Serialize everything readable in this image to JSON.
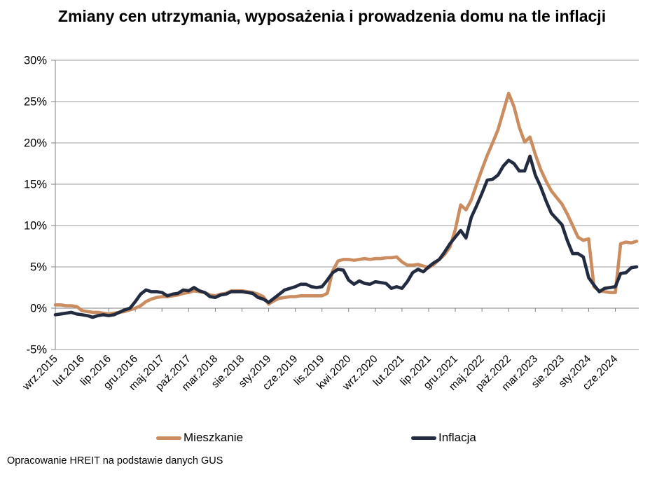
{
  "page": {
    "title": "Zmiany cen utrzymania, wyposażenia i prowadzenia domu na tle inflacji"
  },
  "footer": {
    "text": "Opracowanie HREIT na podstawie danych GUS"
  },
  "chart_data": {
    "type": "line",
    "title": "Zmiany cen utrzymania, wyposażenia i prowadzenia domu na tle inflacji",
    "frequency": "monthly",
    "x_start": "wrz.2015",
    "x_end": "paź.2024",
    "x_tick_labels": [
      "wrz.2015",
      "lut.2016",
      "lip.2016",
      "gru.2016",
      "maj.2017",
      "paź.2017",
      "mar.2018",
      "sie.2018",
      "sty.2019",
      "cze.2019",
      "lis.2019",
      "kwi.2020",
      "wrz.2020",
      "lut.2021",
      "lip.2021",
      "gru.2021",
      "maj.2022",
      "paź.2022",
      "mar.2023",
      "sie.2023",
      "sty.2024",
      "cze.2024"
    ],
    "x_tick_every_n_months": 5,
    "ytick_labels": [
      "30%",
      "25%",
      "20%",
      "15%",
      "10%",
      "5%",
      "0%",
      "-5%"
    ],
    "ylim": [
      -5,
      30
    ],
    "ytick_step": 5,
    "grid": true,
    "legend_position": "bottom",
    "axis_color": "#808080",
    "grid_color": "#9b9b9b",
    "series": [
      {
        "name": "Mieszkanie",
        "color": "#CB8C60",
        "values": [
          0.4,
          0.4,
          0.3,
          0.3,
          0.2,
          -0.3,
          -0.4,
          -0.5,
          -0.5,
          -0.6,
          -0.7,
          -0.6,
          -0.5,
          -0.4,
          -0.2,
          0.0,
          0.3,
          0.8,
          1.1,
          1.3,
          1.4,
          1.4,
          1.5,
          1.6,
          1.8,
          1.9,
          2.1,
          2.0,
          1.9,
          1.6,
          1.5,
          1.7,
          1.8,
          2.1,
          2.1,
          2.1,
          2.0,
          1.9,
          1.7,
          1.4,
          0.5,
          0.9,
          1.2,
          1.3,
          1.4,
          1.4,
          1.5,
          1.5,
          1.5,
          1.5,
          1.5,
          1.8,
          4.5,
          5.7,
          5.9,
          5.9,
          5.8,
          5.9,
          6.0,
          5.9,
          6.0,
          6.0,
          6.1,
          6.1,
          6.2,
          5.6,
          5.2,
          5.2,
          5.3,
          5.1,
          4.9,
          5.3,
          5.9,
          6.5,
          7.4,
          9.5,
          12.5,
          11.9,
          13.1,
          15.0,
          16.8,
          18.5,
          20.0,
          21.6,
          23.8,
          26.0,
          24.4,
          21.9,
          20.1,
          20.7,
          18.6,
          16.8,
          15.4,
          14.2,
          13.4,
          12.6,
          11.4,
          10.0,
          8.6,
          8.2,
          8.4,
          2.6,
          2.1,
          2.0,
          1.9,
          1.9,
          7.8,
          8.0,
          7.9,
          8.1
        ]
      },
      {
        "name": "Inflacja",
        "color": "#222B40",
        "values": [
          -0.8,
          -0.7,
          -0.6,
          -0.5,
          -0.7,
          -0.8,
          -0.9,
          -1.1,
          -0.9,
          -0.8,
          -0.9,
          -0.8,
          -0.5,
          -0.2,
          0.0,
          0.8,
          1.7,
          2.2,
          2.0,
          2.0,
          1.9,
          1.5,
          1.7,
          1.8,
          2.2,
          2.1,
          2.5,
          2.1,
          1.9,
          1.4,
          1.3,
          1.6,
          1.7,
          2.0,
          2.0,
          2.0,
          1.9,
          1.8,
          1.3,
          1.1,
          0.7,
          1.2,
          1.7,
          2.2,
          2.4,
          2.6,
          2.9,
          2.9,
          2.6,
          2.5,
          2.6,
          3.4,
          4.3,
          4.7,
          4.6,
          3.4,
          2.9,
          3.3,
          3.0,
          2.9,
          3.2,
          3.1,
          3.0,
          2.4,
          2.6,
          2.4,
          3.2,
          4.3,
          4.7,
          4.4,
          5.0,
          5.5,
          5.9,
          6.8,
          7.8,
          8.6,
          9.4,
          8.5,
          11.0,
          12.4,
          13.9,
          15.5,
          15.6,
          16.1,
          17.2,
          17.9,
          17.5,
          16.6,
          16.6,
          18.4,
          16.1,
          14.7,
          13.0,
          11.5,
          10.8,
          10.1,
          8.2,
          6.6,
          6.6,
          6.2,
          3.7,
          2.8,
          2.0,
          2.4,
          2.5,
          2.6,
          4.2,
          4.3,
          4.9,
          5.0
        ]
      }
    ]
  }
}
